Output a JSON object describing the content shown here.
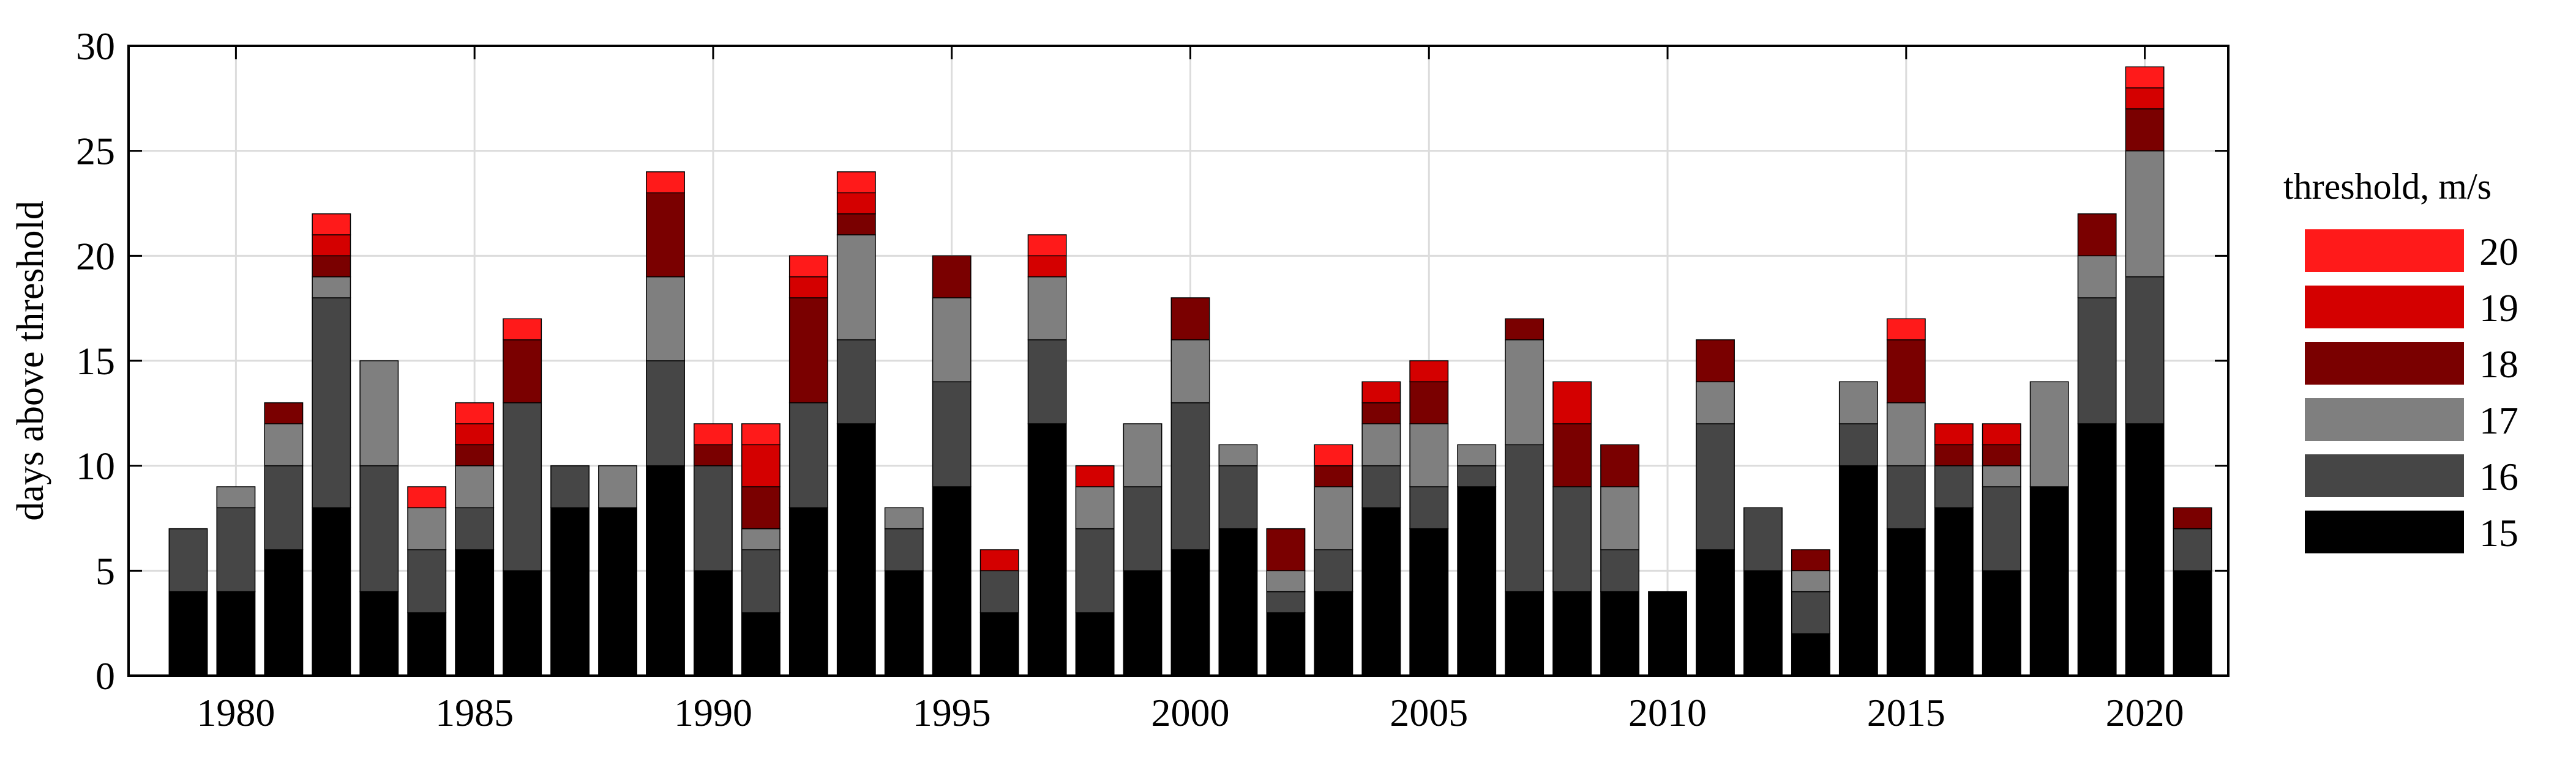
{
  "chart_data": {
    "type": "bar",
    "stacked": true,
    "title": "",
    "xlabel": "",
    "ylabel": "days above threshold",
    "ylim": [
      0,
      30
    ],
    "yticks": [
      0,
      5,
      10,
      15,
      20,
      25,
      30
    ],
    "xticks": [
      1980,
      1985,
      1990,
      1995,
      2000,
      2005,
      2010,
      2015,
      2020
    ],
    "grid": true,
    "legend_title": "threshold, m/s",
    "legend_position": "right",
    "categories": [
      1979,
      1980,
      1981,
      1982,
      1983,
      1984,
      1985,
      1986,
      1987,
      1988,
      1989,
      1990,
      1991,
      1992,
      1993,
      1994,
      1995,
      1996,
      1997,
      1998,
      1999,
      2000,
      2001,
      2002,
      2003,
      2004,
      2005,
      2006,
      2007,
      2008,
      2009,
      2010,
      2011,
      2012,
      2013,
      2014,
      2015,
      2016,
      2017,
      2018,
      2019,
      2020,
      2021
    ],
    "series": [
      {
        "name": "15",
        "color": "#000000",
        "values": [
          4,
          4,
          6,
          8,
          4,
          3,
          6,
          5,
          8,
          8,
          10,
          5,
          3,
          8,
          12,
          5,
          9,
          3,
          12,
          3,
          5,
          6,
          7,
          3,
          4,
          8,
          7,
          9,
          4,
          4,
          4,
          4,
          6,
          5,
          2,
          10,
          7,
          8,
          5,
          9,
          12,
          12,
          5
        ]
      },
      {
        "name": "16",
        "color": "#464646",
        "values": [
          3,
          4,
          4,
          10,
          6,
          3,
          2,
          8,
          2,
          0,
          5,
          5,
          3,
          5,
          4,
          2,
          5,
          2,
          4,
          4,
          4,
          7,
          3,
          1,
          2,
          2,
          2,
          1,
          7,
          5,
          2,
          0,
          6,
          3,
          2,
          2,
          3,
          2,
          4,
          0,
          6,
          7,
          2
        ]
      },
      {
        "name": "17",
        "color": "#7f7f7f",
        "values": [
          0,
          1,
          2,
          1,
          5,
          2,
          2,
          0,
          0,
          2,
          4,
          0,
          1,
          0,
          5,
          1,
          4,
          0,
          3,
          2,
          3,
          3,
          1,
          1,
          3,
          2,
          3,
          1,
          5,
          0,
          3,
          0,
          2,
          0,
          1,
          2,
          3,
          0,
          1,
          5,
          2,
          6,
          0
        ]
      },
      {
        "name": "18",
        "color": "#7a0000",
        "values": [
          0,
          0,
          1,
          1,
          0,
          0,
          1,
          3,
          0,
          0,
          4,
          1,
          2,
          5,
          1,
          0,
          2,
          0,
          0,
          0,
          0,
          2,
          0,
          2,
          1,
          1,
          2,
          0,
          1,
          3,
          2,
          0,
          2,
          0,
          1,
          0,
          3,
          1,
          1,
          0,
          2,
          2,
          1
        ]
      },
      {
        "name": "19",
        "color": "#d40000",
        "values": [
          0,
          0,
          0,
          1,
          0,
          0,
          1,
          0,
          0,
          0,
          0,
          0,
          2,
          1,
          1,
          0,
          0,
          1,
          1,
          1,
          0,
          0,
          0,
          0,
          0,
          1,
          1,
          0,
          0,
          2,
          0,
          0,
          0,
          0,
          0,
          0,
          0,
          1,
          1,
          0,
          0,
          1,
          0
        ]
      },
      {
        "name": "20",
        "color": "#ff1a1a",
        "values": [
          0,
          0,
          0,
          1,
          0,
          1,
          1,
          1,
          0,
          0,
          1,
          1,
          1,
          1,
          1,
          0,
          0,
          0,
          1,
          0,
          0,
          0,
          0,
          0,
          1,
          0,
          0,
          0,
          0,
          0,
          0,
          0,
          0,
          0,
          0,
          0,
          1,
          0,
          0,
          0,
          0,
          1,
          0
        ]
      }
    ]
  }
}
